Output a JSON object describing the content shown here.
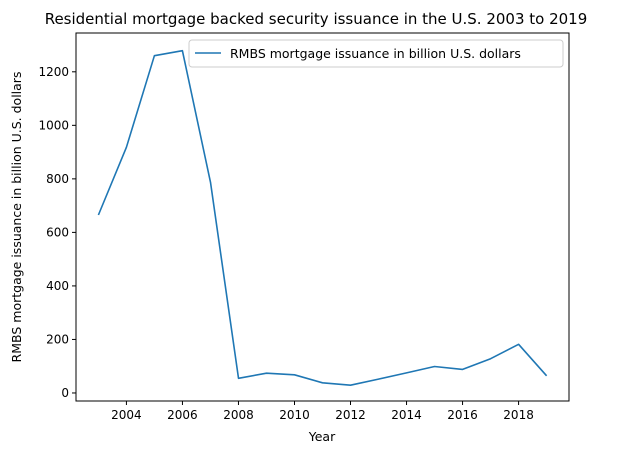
{
  "chart_data": {
    "type": "line",
    "title": "Residential mortgage backed security issuance in the U.S. 2003 to 2019",
    "xlabel": "Year",
    "ylabel": "RMBS mortgage issuance in billion U.S. dollars",
    "xlim": [
      2002.2,
      2019.8
    ],
    "ylim": [
      -30,
      1345
    ],
    "x_ticks": [
      2004,
      2006,
      2008,
      2010,
      2012,
      2014,
      2016,
      2018
    ],
    "y_ticks": [
      0,
      200,
      400,
      600,
      800,
      1000,
      1200
    ],
    "grid": false,
    "legend_position": "top-right",
    "series": [
      {
        "name": "RMBS mortgage issuance in billion U.S. dollars",
        "color": "#1f77b4",
        "x": [
          2003,
          2004,
          2005,
          2006,
          2007,
          2008,
          2009,
          2010,
          2011,
          2012,
          2013,
          2014,
          2015,
          2016,
          2017,
          2018,
          2019
        ],
        "values": [
          665,
          918,
          1260,
          1279,
          787,
          55,
          74,
          68,
          38,
          29,
          52,
          75,
          99,
          88,
          128,
          182,
          64
        ]
      }
    ]
  }
}
